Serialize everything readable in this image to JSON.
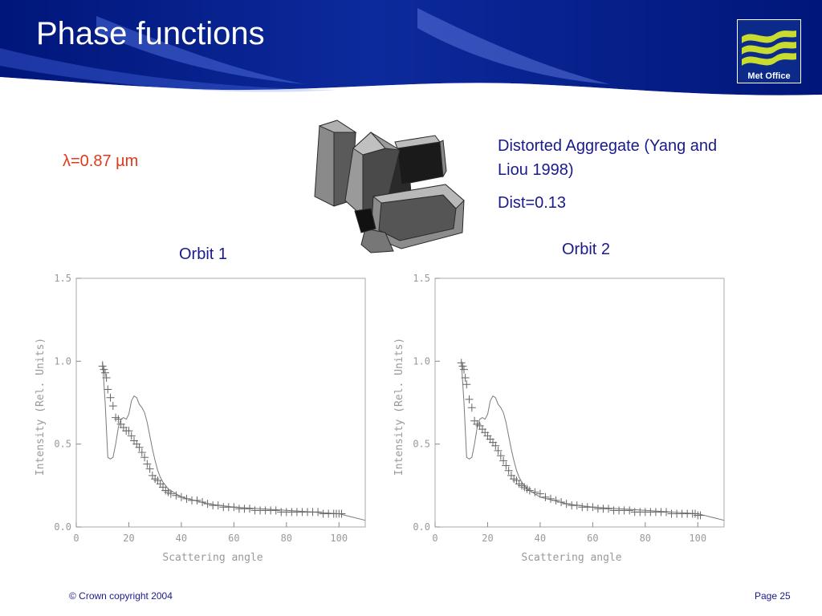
{
  "slide": {
    "title": "Phase functions",
    "logo_text": "Met Office",
    "wavelength_label": "λ=0.87 µm",
    "aggregate_title": "Distorted Aggregate (Yang and Liou 1998)",
    "aggregate_dist": "Dist=0.13",
    "footer_left": "© Crown copyright 2004",
    "footer_right": "Page 25"
  },
  "colors": {
    "banner_dark": "#00167a",
    "banner_mid": "#2a49c0",
    "logo_green": "#c8dc30",
    "text_blue": "#1a1a8c",
    "lambda_red": "#e03a1a",
    "plot_gray": "#7a7a7a"
  },
  "chart_data": [
    {
      "type": "line",
      "title": "Orbit 1",
      "xlabel": "Scattering angle",
      "ylabel": "Intensity (Rel. Units)",
      "xlim": [
        0,
        110
      ],
      "ylim": [
        0,
        1.5
      ],
      "xticks": [
        0,
        20,
        40,
        60,
        80,
        100
      ],
      "yticks": [
        "0.0",
        "0.5",
        "1.0",
        "1.5"
      ],
      "grid": false,
      "series": [
        {
          "style": "line",
          "x": [
            10,
            11,
            12,
            13,
            14,
            15,
            16,
            17,
            18,
            19,
            20,
            21,
            22,
            23,
            24,
            25,
            26,
            27,
            28,
            29,
            30,
            31,
            32,
            33,
            34,
            35,
            36,
            38,
            40,
            45,
            50,
            60,
            70,
            80,
            90,
            100,
            105,
            110
          ],
          "y": [
            1.0,
            0.75,
            0.42,
            0.41,
            0.42,
            0.5,
            0.6,
            0.65,
            0.66,
            0.65,
            0.68,
            0.76,
            0.79,
            0.78,
            0.74,
            0.72,
            0.69,
            0.63,
            0.55,
            0.47,
            0.4,
            0.34,
            0.3,
            0.27,
            0.25,
            0.23,
            0.22,
            0.2,
            0.18,
            0.16,
            0.14,
            0.12,
            0.11,
            0.1,
            0.09,
            0.08,
            0.06,
            0.04
          ]
        },
        {
          "style": "markers",
          "marker": "+",
          "x": [
            10,
            10.5,
            11,
            11.5,
            12,
            13,
            14,
            15,
            16,
            17,
            18,
            19,
            20,
            21,
            22,
            23,
            24,
            25,
            26,
            27,
            28,
            29,
            30,
            31,
            32,
            33,
            34,
            35,
            36,
            38,
            40,
            42,
            44,
            46,
            48,
            50,
            52,
            54,
            56,
            58,
            60,
            62,
            64,
            66,
            68,
            70,
            72,
            74,
            76,
            78,
            80,
            82,
            84,
            86,
            88,
            90,
            92,
            94,
            96,
            98,
            99,
            100,
            101
          ],
          "y": [
            0.97,
            0.95,
            0.93,
            0.9,
            0.83,
            0.78,
            0.73,
            0.66,
            0.65,
            0.62,
            0.6,
            0.58,
            0.58,
            0.55,
            0.52,
            0.5,
            0.48,
            0.45,
            0.42,
            0.38,
            0.35,
            0.31,
            0.29,
            0.28,
            0.26,
            0.24,
            0.22,
            0.21,
            0.2,
            0.19,
            0.18,
            0.17,
            0.16,
            0.16,
            0.15,
            0.14,
            0.13,
            0.13,
            0.12,
            0.12,
            0.12,
            0.11,
            0.11,
            0.11,
            0.1,
            0.1,
            0.1,
            0.1,
            0.1,
            0.09,
            0.09,
            0.09,
            0.09,
            0.09,
            0.09,
            0.09,
            0.09,
            0.08,
            0.08,
            0.08,
            0.08,
            0.08,
            0.08
          ]
        }
      ]
    },
    {
      "type": "line",
      "title": "Orbit 2",
      "xlabel": "Scattering angle",
      "ylabel": "Intensity (Rel. Units)",
      "xlim": [
        0,
        110
      ],
      "ylim": [
        0,
        1.5
      ],
      "xticks": [
        0,
        20,
        40,
        60,
        80,
        100
      ],
      "yticks": [
        "0.0",
        "0.5",
        "1.0",
        "1.5"
      ],
      "grid": false,
      "series": [
        {
          "style": "line",
          "x": [
            10,
            11,
            12,
            13,
            14,
            15,
            16,
            17,
            18,
            19,
            20,
            21,
            22,
            23,
            24,
            25,
            26,
            27,
            28,
            29,
            30,
            31,
            32,
            33,
            34,
            35,
            36,
            38,
            40,
            45,
            50,
            60,
            70,
            80,
            90,
            100,
            105,
            110
          ],
          "y": [
            1.0,
            0.75,
            0.42,
            0.41,
            0.42,
            0.5,
            0.6,
            0.65,
            0.66,
            0.65,
            0.68,
            0.76,
            0.79,
            0.78,
            0.74,
            0.72,
            0.69,
            0.63,
            0.55,
            0.47,
            0.4,
            0.34,
            0.3,
            0.27,
            0.25,
            0.23,
            0.22,
            0.2,
            0.18,
            0.16,
            0.14,
            0.12,
            0.11,
            0.1,
            0.09,
            0.08,
            0.06,
            0.04
          ]
        },
        {
          "style": "markers",
          "marker": "+",
          "x": [
            10,
            10.5,
            11,
            11.5,
            12,
            13,
            14,
            15,
            16,
            17,
            18,
            19,
            20,
            21,
            22,
            23,
            24,
            25,
            26,
            27,
            28,
            29,
            30,
            31,
            32,
            33,
            34,
            35,
            36,
            38,
            40,
            42,
            44,
            46,
            48,
            50,
            52,
            54,
            56,
            58,
            60,
            62,
            64,
            66,
            68,
            70,
            72,
            74,
            76,
            78,
            80,
            82,
            84,
            86,
            88,
            90,
            92,
            94,
            96,
            98,
            99,
            100,
            101
          ],
          "y": [
            0.99,
            0.97,
            0.95,
            0.9,
            0.86,
            0.77,
            0.72,
            0.64,
            0.62,
            0.61,
            0.59,
            0.57,
            0.55,
            0.53,
            0.51,
            0.49,
            0.46,
            0.43,
            0.4,
            0.37,
            0.34,
            0.31,
            0.29,
            0.28,
            0.26,
            0.25,
            0.24,
            0.23,
            0.22,
            0.21,
            0.2,
            0.18,
            0.17,
            0.16,
            0.15,
            0.14,
            0.13,
            0.13,
            0.12,
            0.12,
            0.12,
            0.11,
            0.11,
            0.11,
            0.1,
            0.1,
            0.1,
            0.1,
            0.09,
            0.09,
            0.09,
            0.09,
            0.09,
            0.09,
            0.09,
            0.08,
            0.08,
            0.08,
            0.08,
            0.08,
            0.08,
            0.07,
            0.07
          ]
        }
      ]
    }
  ]
}
